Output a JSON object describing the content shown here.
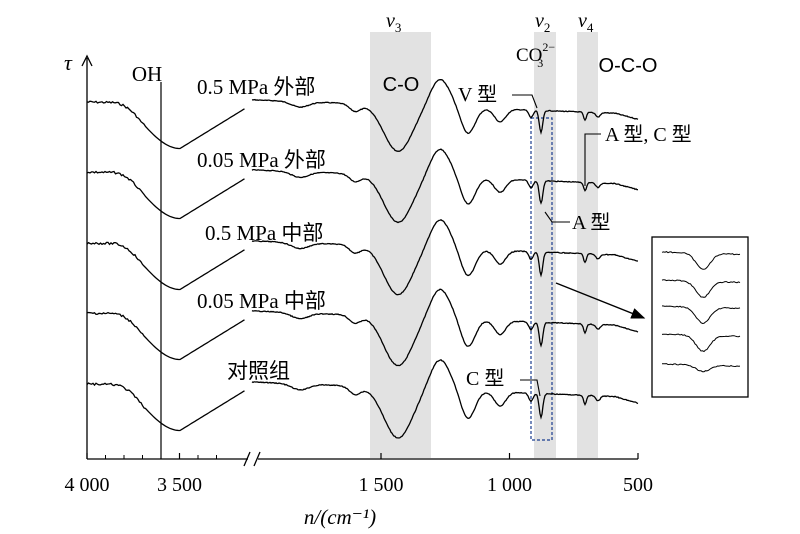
{
  "chart_data": {
    "type": "line",
    "title": "",
    "xlabel": "n/(cm⁻¹)",
    "ylabel": "τ",
    "x_axis": {
      "reversed": true,
      "broken": true,
      "break_between": [
        3300,
        1650
      ],
      "ticks": [
        4000,
        3500,
        1500,
        1000,
        500
      ],
      "tick_labels": [
        "4 000",
        "3 500",
        "1 500",
        "1 000",
        "500"
      ]
    },
    "band_labels": {
      "v3": {
        "symbol": "v",
        "subscript": "3",
        "group": "C-O",
        "range": [
          1300,
          1550
        ]
      },
      "v2": {
        "symbol": "v",
        "subscript": "2",
        "group_base": "CO",
        "group_sub": "3",
        "group_sup": "2−",
        "range": [
          810,
          900
        ]
      },
      "v4": {
        "symbol": "v",
        "subscript": "4",
        "group": "O-C-O",
        "range": [
          640,
          720
        ]
      }
    },
    "oh_label": "OH",
    "oh_position": 3600,
    "series": [
      {
        "name": "0.5 MPa 外部"
      },
      {
        "name": "0.05 MPa 外部"
      },
      {
        "name": "0.5 MPa 中部"
      },
      {
        "name": "0.05 MPa 中部"
      },
      {
        "name": "对照组"
      }
    ],
    "annotations": {
      "v_type": "V 型",
      "a_type": "A 型",
      "ac_type": "A 型, C 型",
      "c_type": "C 型"
    },
    "grid": false,
    "legend": "none"
  }
}
